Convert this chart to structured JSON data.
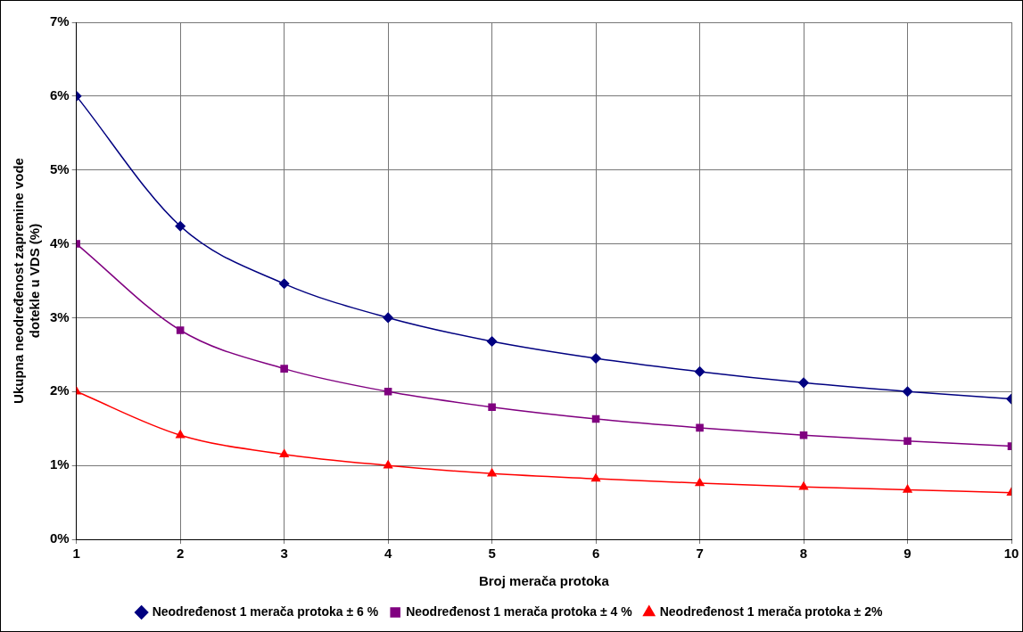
{
  "chart_data": {
    "type": "line",
    "xlabel": "Broj merača protoka",
    "ylabel": "Ukupna neodređenost zapremine vode dotekle u VDS (%)",
    "x": [
      1,
      2,
      3,
      4,
      5,
      6,
      7,
      8,
      9,
      10
    ],
    "xlim": [
      1,
      10
    ],
    "xticks": [
      1,
      2,
      3,
      4,
      5,
      6,
      7,
      8,
      9,
      10
    ],
    "ylim": [
      0,
      7
    ],
    "yticks": [
      {
        "value": 0,
        "label": "0%"
      },
      {
        "value": 1,
        "label": "1%"
      },
      {
        "value": 2,
        "label": "2%"
      },
      {
        "value": 3,
        "label": "3%"
      },
      {
        "value": 4,
        "label": "4%"
      },
      {
        "value": 5,
        "label": "5%"
      },
      {
        "value": 6,
        "label": "6%"
      },
      {
        "value": 7,
        "label": "7%"
      }
    ],
    "grid": true,
    "legend": "bottom",
    "line_style": "solid",
    "series": [
      {
        "name": "Neodređenost 1 merača protoka ± 6 %",
        "color": "#000080",
        "marker": "diamond",
        "values": [
          6.0,
          4.24,
          3.46,
          3.0,
          2.68,
          2.45,
          2.27,
          2.12,
          2.0,
          1.9
        ]
      },
      {
        "name": "Neodređenost 1 merača protoka ± 4 %",
        "color": "#800080",
        "marker": "square",
        "values": [
          4.0,
          2.83,
          2.31,
          2.0,
          1.79,
          1.63,
          1.51,
          1.41,
          1.33,
          1.26
        ]
      },
      {
        "name": "Neodređenost 1 merača protoka ± 2%",
        "color": "#ff0000",
        "marker": "triangle",
        "values": [
          2.0,
          1.41,
          1.15,
          1.0,
          0.89,
          0.82,
          0.76,
          0.71,
          0.67,
          0.63
        ]
      }
    ]
  }
}
